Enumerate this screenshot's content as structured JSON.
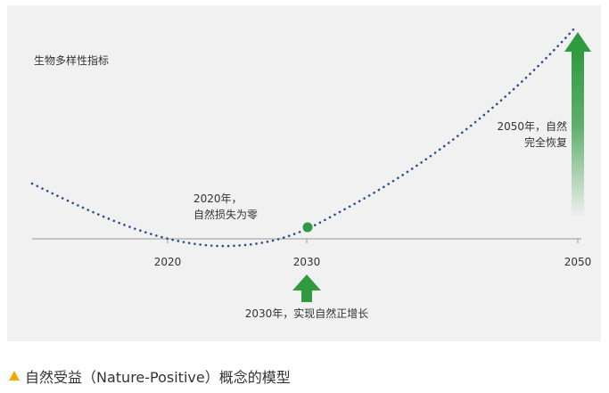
{
  "title": "生物多样性指标",
  "ticks": [
    "2020",
    "2030",
    "2050"
  ],
  "annotations": {
    "y2020": [
      "2020年，",
      "自然损失为零"
    ],
    "y2030": "2030年，实现自然正增长",
    "y2050": [
      "2050年，自然",
      "完全恢复"
    ]
  },
  "caption": "自然受益（Nature-Positive）概念的模型",
  "colors": {
    "curve": "#2b4f8e",
    "axis": "#999999",
    "marker": "#2f9a3f",
    "arrow": "#2f9a3f",
    "caption_marker": "#f2a900",
    "panel": "#f1f1f1"
  }
}
